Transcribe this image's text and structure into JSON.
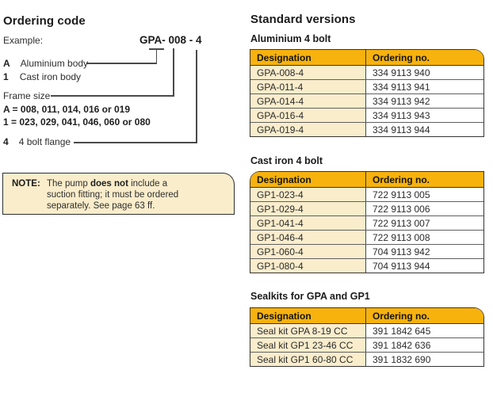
{
  "colors": {
    "table_header_yellow": "#F7B20E",
    "cream_cell": "#FAEDCC",
    "note_background": "#FAEDCB",
    "border_dark": "#353535",
    "text": "#2e2e2e"
  },
  "ordering_code": {
    "title": "Ordering code",
    "example_label": "Example:",
    "example_code": "GPA- 008 - 4",
    "options": [
      {
        "key": "A",
        "label": "Aluminium body"
      },
      {
        "key": "1",
        "label": "Cast iron body"
      }
    ],
    "frame_size_label": "Frame size",
    "frame_sizes": [
      "A = 008, 011, 014, 016 or 019",
      "1 = 023, 029, 041, 046, 060 or 080"
    ],
    "flange": {
      "key": "4",
      "label": "4 bolt flange"
    },
    "note": {
      "label": "NOTE:",
      "line1_pre": "The pump ",
      "line1_bold": "does not",
      "line1_post": " include a",
      "line2": "suction fitting; it must be ordered",
      "line3": "separately. See page 63 ff."
    }
  },
  "standard_versions": {
    "title": "Standard versions",
    "tables": [
      {
        "caption": "Aluminium 4 bolt",
        "columns": [
          "Designation",
          "Ordering no."
        ],
        "rows": [
          [
            "GPA-008-4",
            "334 9113 940"
          ],
          [
            "GPA-011-4",
            "334 9113 941"
          ],
          [
            "GPA-014-4",
            "334 9113 942"
          ],
          [
            "GPA-016-4",
            "334 9113 943"
          ],
          [
            "GPA-019-4",
            "334 9113 944"
          ]
        ]
      },
      {
        "caption": "Cast iron 4 bolt",
        "columns": [
          "Designation",
          "Ordering no."
        ],
        "rows": [
          [
            "GP1-023-4",
            "722 9113 005"
          ],
          [
            "GP1-029-4",
            "722 9113 006"
          ],
          [
            "GP1-041-4",
            "722 9113 007"
          ],
          [
            "GP1-046-4",
            "722 9113 008"
          ],
          [
            "GP1-060-4",
            "704 9113 942"
          ],
          [
            "GP1-080-4",
            "704 9113 944"
          ]
        ]
      },
      {
        "caption": "Sealkits for GPA and GP1",
        "columns": [
          "Designation",
          "Ordering no."
        ],
        "rows": [
          [
            "Seal kit GPA 8-19 CC",
            "391 1842 645"
          ],
          [
            "Seal kit GP1 23-46 CC",
            "391 1842 636"
          ],
          [
            "Seal kit GP1 60-80 CC",
            "391 1832 690"
          ]
        ]
      }
    ]
  }
}
